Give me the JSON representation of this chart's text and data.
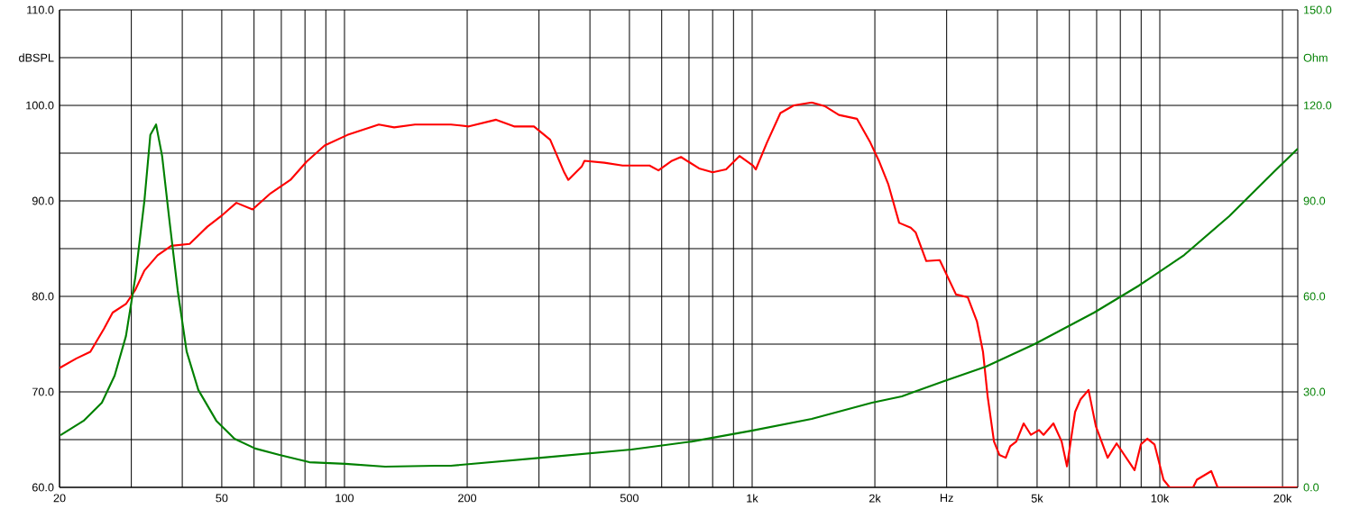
{
  "chart_data": {
    "type": "line",
    "log": "x",
    "grid": true,
    "xlim": [
      20,
      21800
    ],
    "xticks": [
      {
        "value": 20,
        "label": "20"
      },
      {
        "value": 30,
        "label": null
      },
      {
        "value": 40,
        "label": null
      },
      {
        "value": 50,
        "label": "50"
      },
      {
        "value": 60,
        "label": null
      },
      {
        "value": 70,
        "label": null
      },
      {
        "value": 80,
        "label": null
      },
      {
        "value": 90,
        "label": null
      },
      {
        "value": 100,
        "label": "100"
      },
      {
        "value": 200,
        "label": "200"
      },
      {
        "value": 300,
        "label": null
      },
      {
        "value": 400,
        "label": null
      },
      {
        "value": 500,
        "label": "500"
      },
      {
        "value": 600,
        "label": null
      },
      {
        "value": 700,
        "label": null
      },
      {
        "value": 800,
        "label": null
      },
      {
        "value": 900,
        "label": null
      },
      {
        "value": 1000,
        "label": "1k"
      },
      {
        "value": 2000,
        "label": "2k"
      },
      {
        "value": 3000,
        "label": "Hz"
      },
      {
        "value": 4000,
        "label": null
      },
      {
        "value": 5000,
        "label": "5k"
      },
      {
        "value": 6000,
        "label": null
      },
      {
        "value": 7000,
        "label": null
      },
      {
        "value": 8000,
        "label": null
      },
      {
        "value": 9000,
        "label": null
      },
      {
        "value": 10000,
        "label": "10k"
      },
      {
        "value": 20000,
        "label": "20k"
      }
    ],
    "ylim": [
      60,
      110
    ],
    "yticks": [
      {
        "value": 60,
        "label": "60.0"
      },
      {
        "value": 65,
        "label": null
      },
      {
        "value": 70,
        "label": "70.0"
      },
      {
        "value": 75,
        "label": null
      },
      {
        "value": 80,
        "label": "80.0"
      },
      {
        "value": 85,
        "label": null
      },
      {
        "value": 90,
        "label": "90.0"
      },
      {
        "value": 95,
        "label": null
      },
      {
        "value": 100,
        "label": "100.0"
      },
      {
        "value": 105,
        "label": "dBSPL"
      },
      {
        "value": 110,
        "label": "110.0"
      }
    ],
    "y2lim": [
      0,
      150
    ],
    "y2ticks": [
      {
        "value": 0,
        "label": "0.0"
      },
      {
        "value": 30,
        "label": "30.0"
      },
      {
        "value": 60,
        "label": "60.0"
      },
      {
        "value": 90,
        "label": "90.0"
      },
      {
        "value": 120,
        "label": "120.0"
      },
      {
        "value": 135,
        "label": "Ohm"
      },
      {
        "value": 150,
        "label": "150.0"
      }
    ],
    "series": [
      {
        "color": "#ff0000",
        "x": [
          20,
          22.0,
          23.8,
          25.7,
          27.0,
          29.1,
          30.7,
          32.3,
          34.8,
          37.6,
          41.7,
          46.1,
          49.8,
          54.3,
          59.5,
          65.9,
          73.7,
          80.7,
          89.4,
          101.6,
          121.4,
          132.4,
          148.9,
          182.5,
          201.9,
          235.5,
          260.6,
          291.6,
          319.6,
          345,
          354,
          382,
          388,
          434,
          481,
          560,
          589,
          636,
          669,
          741,
          800,
          863,
          931,
          1005,
          1021,
          1087,
          1173,
          1265,
          1400,
          1511,
          1633,
          1807,
          1950,
          2051,
          2159,
          2294,
          2449,
          2518,
          2674,
          2885,
          3163,
          3381,
          3559,
          3684,
          3783,
          3920,
          4041,
          4188,
          4295,
          4446,
          4635,
          4829,
          5056,
          5186,
          5484,
          5744,
          5920,
          6198,
          6387,
          6686,
          6969,
          7447,
          7836,
          8671,
          8987,
          9315,
          9704,
          10210,
          10570,
          12070,
          12330,
          13370,
          13860,
          21800
        ],
        "values": [
          72.5,
          73.5,
          74.2,
          76.6,
          78.3,
          79.2,
          80.7,
          82.7,
          84.3,
          85.3,
          85.5,
          87.3,
          88.4,
          89.8,
          89.1,
          90.8,
          92.2,
          94.1,
          95.8,
          96.9,
          98.0,
          97.7,
          98.0,
          98.0,
          97.8,
          98.5,
          97.8,
          97.8,
          96.4,
          93.1,
          92.2,
          93.6,
          94.2,
          94.0,
          93.7,
          93.7,
          93.2,
          94.2,
          94.6,
          93.4,
          93.0,
          93.3,
          94.7,
          93.7,
          93.3,
          96.1,
          99.2,
          100.0,
          100.3,
          99.9,
          99.0,
          98.6,
          96.1,
          94.1,
          91.7,
          87.7,
          87.2,
          86.7,
          83.7,
          83.8,
          80.2,
          79.9,
          77.4,
          74.2,
          69.5,
          64.8,
          63.4,
          63.1,
          64.3,
          64.8,
          66.7,
          65.5,
          66.0,
          65.5,
          66.7,
          64.8,
          62.2,
          67.9,
          69.2,
          70.2,
          66.4,
          63.1,
          64.6,
          61.8,
          64.5,
          65.1,
          64.5,
          60.8,
          60.0,
          60.0,
          60.8,
          61.7,
          60.0,
          60.0
        ]
      },
      {
        "color": "#008000",
        "axis": "y2",
        "x": [
          20.1,
          22.9,
          25.4,
          27.3,
          29.1,
          30.7,
          32.3,
          33.4,
          34.5,
          35.7,
          37.1,
          39.0,
          41.0,
          43.8,
          48.5,
          53.7,
          60.4,
          69.3,
          82.0,
          100.5,
          125.8,
          167.4,
          182.5,
          303.6,
          505.6,
          711,
          996,
          1400,
          1969,
          2329,
          2960,
          3743,
          4928,
          6900,
          8891,
          11480,
          14800,
          19100,
          21800
        ],
        "values": [
          16.4,
          20.9,
          26.6,
          35.1,
          47.5,
          66.2,
          90.0,
          110.7,
          114.0,
          104.1,
          85.2,
          61.7,
          42.7,
          30.6,
          20.9,
          15.3,
          12.2,
          10.2,
          7.9,
          7.4,
          6.5,
          6.8,
          6.8,
          9.3,
          11.9,
          14.4,
          17.8,
          21.5,
          26.6,
          28.6,
          33.4,
          37.9,
          45.0,
          54.9,
          63.4,
          73.0,
          85.2,
          99.3,
          106.4
        ]
      }
    ]
  }
}
